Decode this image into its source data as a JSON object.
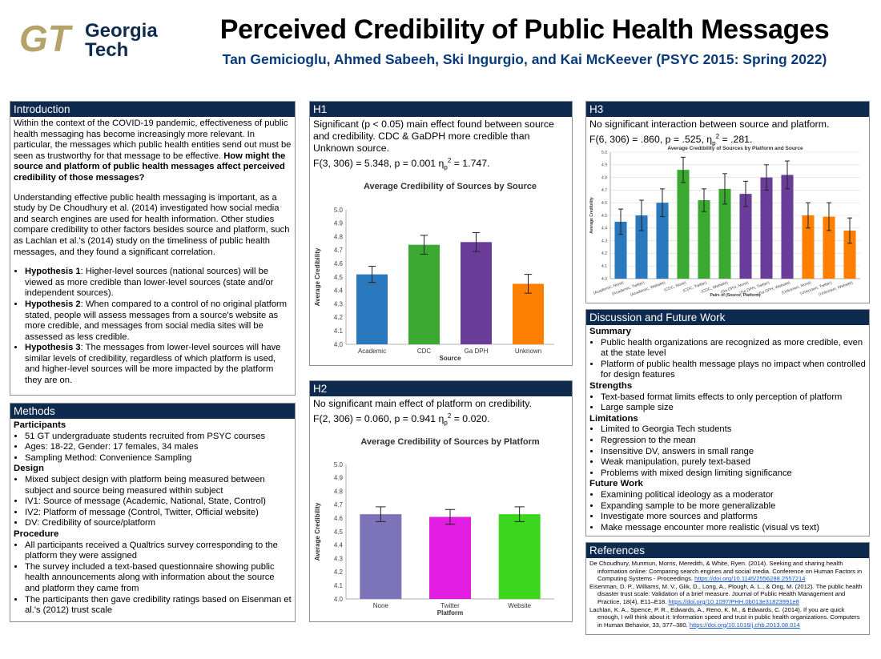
{
  "header": {
    "logo_text_top": "Georgia",
    "logo_text_bottom": "Tech",
    "title": "Perceived Credibility of Public Health Messages",
    "authors": "Tan Gemicioglu, Ahmed Sabeeh, Ski Ingurgio, and Kai McKeever (PSYC 2015: Spring 2022)"
  },
  "intro": {
    "heading": "Introduction",
    "p1_text": "Within the context of the COVID-19 pandemic, effectiveness of public health messaging has become increasingly more relevant. In particular, the messages which public health entities send out must be seen as trustworthy for that message to be effective. ",
    "p1_bold": "How might the source and platform of public health messages affect perceived credibility of those messages?",
    "p2": "Understanding effective public health messaging is important, as a study by De Choudhury et al. (2014) investigated how social media and search engines are used for health information. Other studies compare credibility to other factors besides source and platform, such as Lachlan et al.'s (2014) study on the timeliness of public health messages, and they found a significant correlation.",
    "hypotheses": [
      {
        "label": "Hypothesis 1",
        "text": ": Higher-level sources (national sources) will be viewed as more credible than lower-level sources (state and/or independent sources)."
      },
      {
        "label": "Hypothesis 2",
        "text": ": When compared to a control of no original platform stated, people will assess messages from a source's website as more credible, and messages from social media sites will be assessed as less credible."
      },
      {
        "label": "Hypothesis 3",
        "text": ": The messages from lower-level sources will have similar levels of credibility, regardless of which platform is used, and higher-level sources will be more impacted by the platform they are on."
      }
    ]
  },
  "methods": {
    "heading": "Methods",
    "participants_title": "Participants",
    "participants": [
      "51 GT undergraduate students recruited from PSYC courses",
      "Ages: 18-22, Gender: 17 females, 34 males",
      "Sampling Method: Convenience Sampling"
    ],
    "design_title": "Design",
    "design": [
      "Mixed subject design with platform being measured between subject and source being measured within subject",
      "IV1: Source of message (Academic, National, State, Control)",
      "IV2: Platform of message (Control, Twitter, Official website)",
      "DV: Credibility of source/platform"
    ],
    "procedure_title": "Procedure",
    "procedure": [
      "All participants received a Qualtrics survey corresponding to the platform they were assigned",
      "The survey included a text-based questionnaire showing public health announcements along with information about the source and platform they came from",
      "The participants then gave credibility ratings based on Eisenman et al.'s (2012) trust scale"
    ]
  },
  "h1": {
    "heading": "H1",
    "text": "Significant (p < 0.05) main effect found between source and credibility. CDC & GaDPH more credible than Unknown source.",
    "stat_prefix": "F(3, 306) = 5.348, p = 0.001 η",
    "stat_sub": "p",
    "stat_sup": "2",
    "stat_suffix": " = 1.747."
  },
  "h2": {
    "heading": "H2",
    "text": "No significant main effect of platform on credibility.",
    "stat_prefix": "F(2, 306) = 0.060, p = 0.941 η",
    "stat_sub": "p",
    "stat_sup": "2",
    "stat_suffix": " = 0.020."
  },
  "h3": {
    "heading": "H3",
    "text": "No significant interaction between source and platform.",
    "stat_prefix": "F(6, 306) = .860, p = .525, η",
    "stat_sub": "p",
    "stat_sup": "2",
    "stat_suffix": " = .281."
  },
  "discussion": {
    "heading": "Discussion and Future Work",
    "sections": [
      {
        "title": "Summary",
        "items": [
          "Public health organizations are recognized as more credible, even at the state level",
          "Platform of public health message plays no impact when controlled for design features"
        ]
      },
      {
        "title": "Strengths",
        "items": [
          "Text-based format limits effects to only perception of platform",
          "Large sample size"
        ]
      },
      {
        "title": "Limitations",
        "items": [
          "Limited to Georgia Tech students",
          "Regression to the mean",
          "Insensitive DV, answers in small range",
          "Weak manipulation, purely text-based",
          "Problems with mixed design limiting significance"
        ]
      },
      {
        "title": "Future Work",
        "items": [
          "Examining political ideology as a moderator",
          "Expanding sample to be more generalizable",
          "Investigate more sources and platforms",
          "Make message encounter more realistic (visual vs text)"
        ]
      }
    ]
  },
  "references": {
    "heading": "References",
    "items": [
      {
        "text": "De Choudhury, Munmun, Morris, Meredith, & White, Ryen. (2014). Seeking and sharing health information online: Comparing search engines and social media. Conference on Human Factors in Computing Systems - Proceedings. ",
        "link": "https://doi.org/10.1145/2556288.2557214"
      },
      {
        "text": "Eisenman, D. P., Williams, M. V., Glik, D., Long, A., Plough, A. L., & Ong, M. (2012). The public health disaster trust scale: Validation of a brief measure. Journal of Public Health Management and Practice, 18(4), E11–E18. ",
        "link": "https://doi.org/10.1097/PHH.0b013e31823991e8"
      },
      {
        "text": "Lachlan, K. A., Spence, P. R., Edwards, A., Reno, K. M., & Edwards, C. (2014). If you are quick enough, I will think about it: Information speed and trust in public health organizations. Computers in Human Behavior, 33, 377–380. ",
        "link": "https://doi.org/10.1016/j.chb.2013.08.014"
      }
    ]
  },
  "colors": {
    "panel_header": "#0e2b4f",
    "blue": "#2a78bd",
    "green": "#3aa831",
    "purple": "#6a3d9a",
    "orange": "#ff8000",
    "lavender": "#7c73b8",
    "magenta": "#e11ee2",
    "lime": "#3cd61e",
    "gt_gold": "#b3a369"
  },
  "chart_data": [
    {
      "type": "bar",
      "title": "Average Credibility of Sources by Source",
      "xlabel": "Source",
      "ylabel": "Average Credibility",
      "ylim": [
        4.0,
        5.0
      ],
      "yticks": [
        "4.0",
        "4.1",
        "4.2",
        "4.3",
        "4.4",
        "4.5",
        "4.6",
        "4.7",
        "4.8",
        "4.9",
        "5.0"
      ],
      "categories": [
        "Academic",
        "CDC",
        "Ga DPH",
        "Unknown"
      ],
      "values": [
        4.52,
        4.74,
        4.76,
        4.45
      ],
      "errors": [
        0.06,
        0.07,
        0.07,
        0.07
      ],
      "colors": [
        "#2a78bd",
        "#3aa831",
        "#6a3d9a",
        "#ff8000"
      ],
      "grid": false
    },
    {
      "type": "bar",
      "title": "Average Credibility of Sources by Platform",
      "xlabel": "Platform",
      "ylabel": "Average Credibility",
      "ylim": [
        4.0,
        5.0
      ],
      "yticks": [
        "4.0",
        "4.1",
        "4.2",
        "4.3",
        "4.4",
        "4.5",
        "4.6",
        "4.7",
        "4.8",
        "4.9",
        "5.0"
      ],
      "categories": [
        "None",
        "Twitter",
        "Website"
      ],
      "values": [
        4.63,
        4.61,
        4.63
      ],
      "errors": [
        0.055,
        0.055,
        0.055
      ],
      "colors": [
        "#7c73b8",
        "#e11ee2",
        "#3cd61e"
      ],
      "grid": false
    },
    {
      "type": "bar",
      "title": "Average Credibility of Sources by Platform and Source",
      "xlabel": "Pairs of (Source, Platform)",
      "ylabel": "Average Credibility",
      "ylim": [
        4.0,
        5.0
      ],
      "yticks": [
        "4.0",
        "4.1",
        "4.2",
        "4.3",
        "4.4",
        "4.5",
        "4.6",
        "4.7",
        "4.8",
        "4.9",
        "5.0"
      ],
      "categories": [
        "(Academic, None)",
        "(Academic, Twitter)",
        "(Academic, Website)",
        "(CDC, None)",
        "(CDC, Twitter)",
        "(CDC, Website)",
        "(Ga DPH, None)",
        "(Ga DPH, Twitter)",
        "(Ga DPH, Website)",
        "(Unknown, None)",
        "(Unknown, Twitter)",
        "(Unknown, Website)"
      ],
      "values": [
        4.45,
        4.5,
        4.6,
        4.86,
        4.62,
        4.71,
        4.67,
        4.8,
        4.82,
        4.5,
        4.49,
        4.38
      ],
      "errors": [
        0.1,
        0.12,
        0.11,
        0.1,
        0.09,
        0.12,
        0.1,
        0.1,
        0.11,
        0.1,
        0.11,
        0.1
      ],
      "colors": [
        "#2a78bd",
        "#2a78bd",
        "#2a78bd",
        "#3aa831",
        "#3aa831",
        "#3aa831",
        "#6a3d9a",
        "#6a3d9a",
        "#6a3d9a",
        "#ff8000",
        "#ff8000",
        "#ff8000"
      ],
      "grid": true
    }
  ]
}
